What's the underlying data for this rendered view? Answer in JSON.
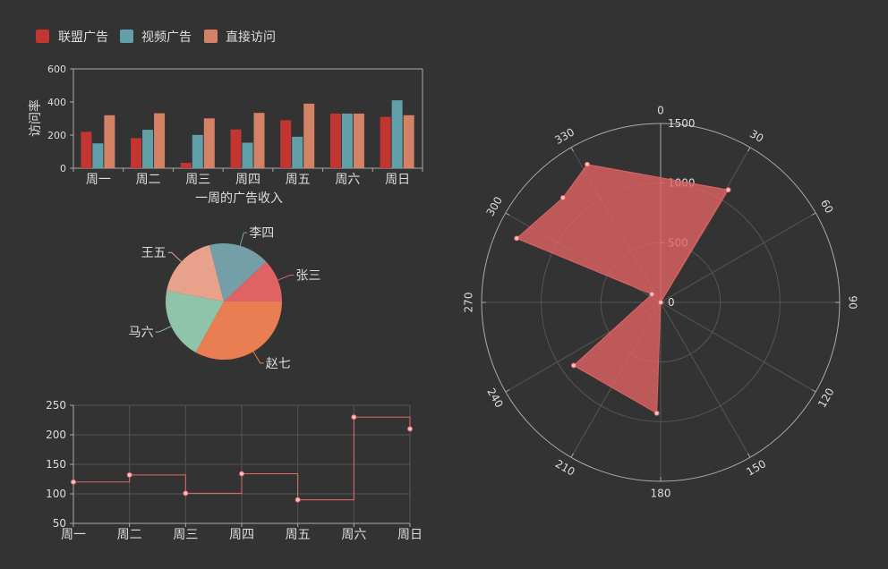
{
  "legend": {
    "items": [
      {
        "name": "联盟广告",
        "color": "#c23531"
      },
      {
        "name": "视频广告",
        "color": "#61a0a8"
      },
      {
        "name": "直接访问",
        "color": "#d48265"
      }
    ]
  },
  "colors": {
    "background": "#333333",
    "series1": "#c23531",
    "series2": "#61a0a8",
    "series3": "#d48265",
    "axis": "#aaaaaa",
    "grid": "#555555",
    "text": "#dddddd",
    "line": "#e06a6a",
    "polar": "#e06363",
    "pie": [
      "#e06363",
      "#749fa8",
      "#e8a28c",
      "#8fc4aa",
      "#ea7e53"
    ]
  },
  "chart_data": [
    {
      "type": "bar",
      "categories": [
        "周一",
        "周二",
        "周三",
        "周四",
        "周五",
        "周六",
        "周日"
      ],
      "series": [
        {
          "name": "联盟广告",
          "values": [
            220,
            182,
            32,
            234,
            290,
            330,
            310
          ]
        },
        {
          "name": "视频广告",
          "values": [
            150,
            232,
            201,
            154,
            190,
            330,
            410
          ]
        },
        {
          "name": "直接访问",
          "values": [
            320,
            332,
            301,
            334,
            390,
            330,
            320
          ]
        }
      ],
      "xlabel": "一周的广告收入",
      "ylabel": "访问率",
      "ylim": [
        0,
        600
      ],
      "yticks": [
        "0",
        "200",
        "400",
        "600"
      ]
    },
    {
      "type": "pie",
      "slices": [
        {
          "name": "张三",
          "value": 12
        },
        {
          "name": "李四",
          "value": 17
        },
        {
          "name": "王五",
          "value": 18
        },
        {
          "name": "马六",
          "value": 20
        },
        {
          "name": "赵七",
          "value": 33
        }
      ]
    },
    {
      "type": "line",
      "step": true,
      "categories": [
        "周一",
        "周二",
        "周三",
        "周四",
        "周五",
        "周六",
        "周日"
      ],
      "values": [
        120,
        132,
        101,
        134,
        90,
        230,
        210
      ],
      "ylim": [
        50,
        250
      ],
      "yticks": [
        "50",
        "100",
        "150",
        "200",
        "250"
      ]
    },
    {
      "type": "polar-scatter",
      "points": [
        {
          "angle": 31,
          "r": 1100
        },
        {
          "angle": 332,
          "r": 1310
        },
        {
          "angle": 317,
          "r": 1200
        },
        {
          "angle": 294,
          "r": 1320
        },
        {
          "angle": 313,
          "r": 100
        },
        {
          "angle": 234,
          "r": 900
        },
        {
          "angle": 182,
          "r": 930
        },
        {
          "angle": 0,
          "r": 0
        }
      ],
      "r_ticks": [
        "0",
        "500",
        "1000",
        "1500"
      ],
      "rmax": 1500,
      "angle_ticks": [
        "0",
        "30",
        "60",
        "90",
        "120",
        "150",
        "180",
        "210",
        "240",
        "270",
        "300",
        "330"
      ]
    }
  ]
}
